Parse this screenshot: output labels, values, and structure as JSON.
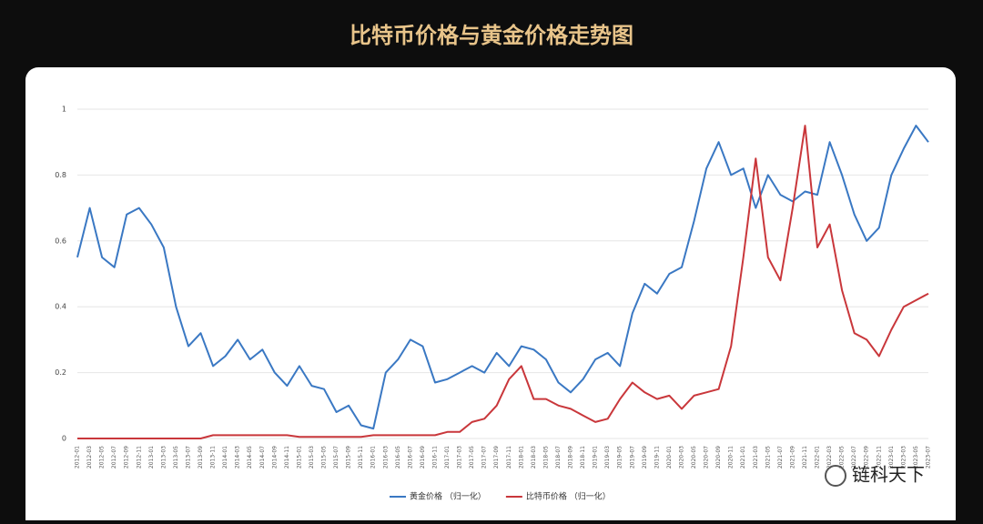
{
  "chart_data": {
    "type": "line",
    "title": "比特币价格与黄金价格走势图",
    "watermark": "链科天下",
    "categories": [
      "2012-01",
      "2012-03",
      "2012-05",
      "2012-07",
      "2012-09",
      "2012-11",
      "2013-01",
      "2013-03",
      "2013-05",
      "2013-07",
      "2013-09",
      "2013-11",
      "2014-01",
      "2014-03",
      "2014-05",
      "2014-07",
      "2014-09",
      "2014-11",
      "2015-01",
      "2015-03",
      "2015-05",
      "2015-07",
      "2015-09",
      "2015-11",
      "2016-01",
      "2016-03",
      "2016-05",
      "2016-07",
      "2016-09",
      "2016-11",
      "2017-01",
      "2017-03",
      "2017-05",
      "2017-07",
      "2017-09",
      "2017-11",
      "2018-01",
      "2018-03",
      "2018-05",
      "2018-07",
      "2018-09",
      "2018-11",
      "2019-01",
      "2019-03",
      "2019-05",
      "2019-07",
      "2019-09",
      "2019-11",
      "2020-01",
      "2020-03",
      "2020-05",
      "2020-07",
      "2020-09",
      "2020-11",
      "2021-01",
      "2021-03",
      "2021-05",
      "2021-07",
      "2021-09",
      "2021-11",
      "2022-01",
      "2022-03",
      "2022-05",
      "2022-07",
      "2022-09",
      "2022-11",
      "2023-01",
      "2023-03",
      "2023-05",
      "2023-07"
    ],
    "series": [
      {
        "name": "黄金价格 （归一化）",
        "color": "#3a78c3",
        "values": [
          0.55,
          0.7,
          0.55,
          0.52,
          0.68,
          0.7,
          0.65,
          0.58,
          0.4,
          0.28,
          0.32,
          0.22,
          0.25,
          0.3,
          0.24,
          0.27,
          0.2,
          0.16,
          0.22,
          0.16,
          0.15,
          0.08,
          0.1,
          0.04,
          0.03,
          0.2,
          0.24,
          0.3,
          0.28,
          0.17,
          0.18,
          0.2,
          0.22,
          0.2,
          0.26,
          0.22,
          0.28,
          0.27,
          0.24,
          0.17,
          0.14,
          0.18,
          0.24,
          0.26,
          0.22,
          0.38,
          0.47,
          0.44,
          0.5,
          0.52,
          0.66,
          0.82,
          0.9,
          0.8,
          0.82,
          0.7,
          0.8,
          0.74,
          0.72,
          0.75,
          0.74,
          0.9,
          0.8,
          0.68,
          0.6,
          0.64,
          0.8,
          0.88,
          0.95,
          0.9
        ]
      },
      {
        "name": "比特币价格 （归一化）",
        "color": "#c9373b",
        "values": [
          0,
          0,
          0,
          0,
          0,
          0,
          0,
          0,
          0,
          0,
          0,
          0.01,
          0.01,
          0.01,
          0.01,
          0.01,
          0.01,
          0.01,
          0.005,
          0.005,
          0.005,
          0.005,
          0.005,
          0.005,
          0.01,
          0.01,
          0.01,
          0.01,
          0.01,
          0.01,
          0.02,
          0.02,
          0.05,
          0.06,
          0.1,
          0.18,
          0.22,
          0.12,
          0.12,
          0.1,
          0.09,
          0.07,
          0.05,
          0.06,
          0.12,
          0.17,
          0.14,
          0.12,
          0.13,
          0.09,
          0.13,
          0.14,
          0.15,
          0.28,
          0.55,
          0.85,
          0.55,
          0.48,
          0.7,
          0.95,
          0.58,
          0.65,
          0.45,
          0.32,
          0.3,
          0.25,
          0.33,
          0.4,
          0.42,
          0.44
        ]
      }
    ],
    "ylim": [
      0,
      1
    ],
    "yticks": [
      0,
      0.2,
      0.4,
      0.6,
      0.8,
      1
    ],
    "grid": true
  }
}
